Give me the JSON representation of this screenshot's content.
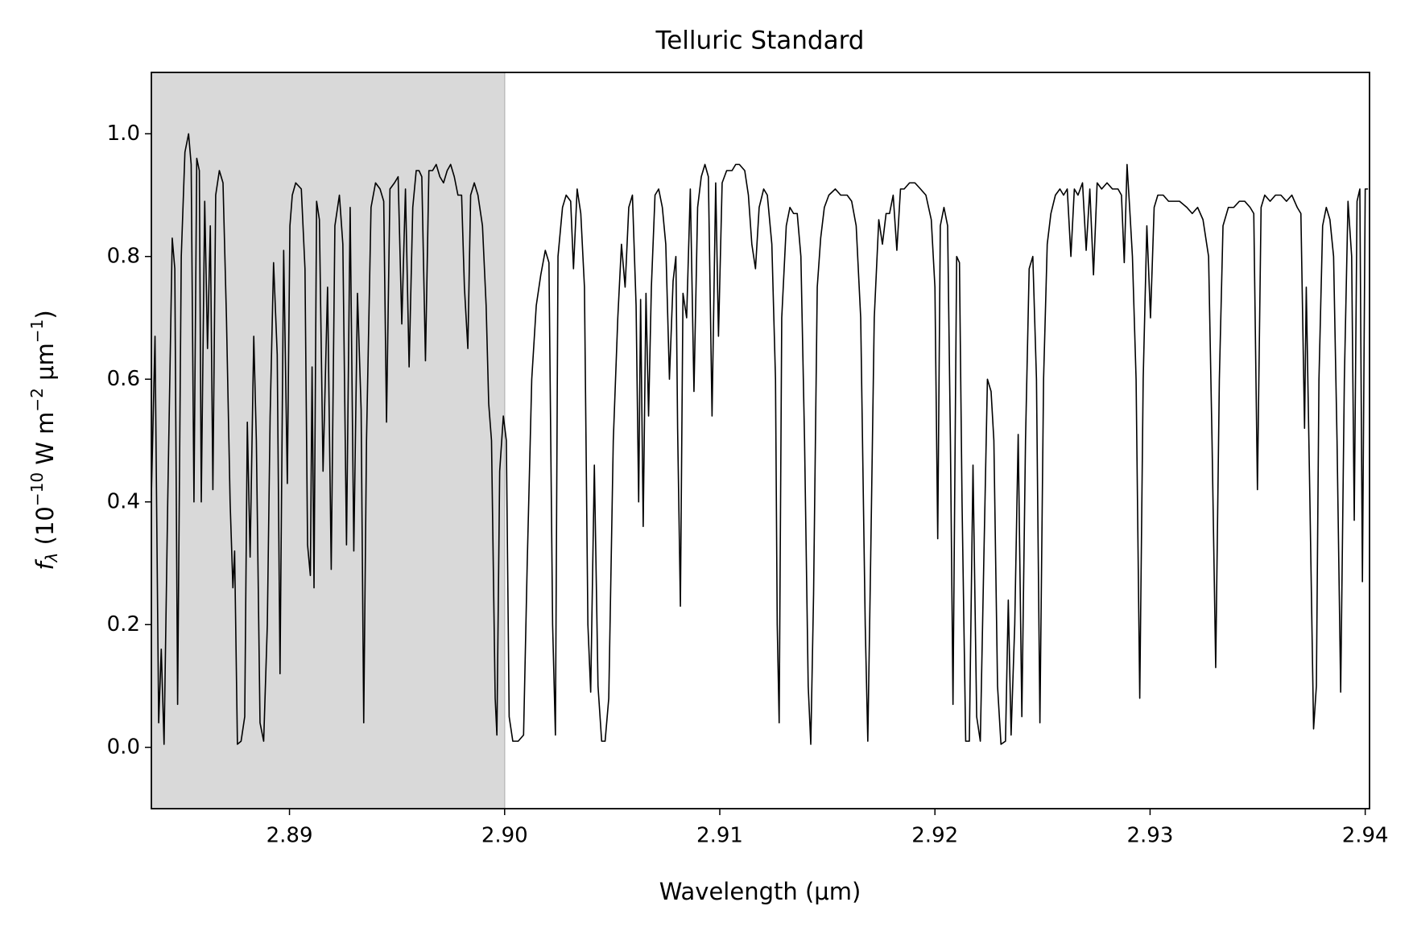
{
  "chart_data": {
    "type": "line",
    "title": "Telluric Standard",
    "xlabel": "Wavelength (μm)",
    "ylabel": {
      "symbol": "f",
      "subscript": "λ",
      "open": " (10",
      "exp1": "−10",
      "unit1": " W m",
      "exp2": "−2",
      "unit2": " μm",
      "exp3": "−1",
      "close": ")"
    },
    "xlim": [
      2.88358,
      2.9402
    ],
    "ylim": [
      -0.1,
      1.1
    ],
    "xticks": [
      2.89,
      {
        "value": 2.9,
        "label": "2.90"
      },
      2.91,
      2.92,
      2.93,
      2.94
    ],
    "yticks": [
      {
        "value": 0,
        "label": "0.0"
      },
      0.2,
      0.4,
      0.6,
      0.8,
      {
        "value": 1,
        "label": "1.0"
      }
    ],
    "shade": {
      "x": [
        2.88358,
        2.9
      ],
      "color": "#d9d9d9"
    },
    "color": "#000000",
    "x": [
      2.88358,
      2.88375,
      2.88392,
      2.88404,
      2.88417,
      2.88434,
      2.88455,
      2.88467,
      2.8848,
      2.88497,
      2.88514,
      2.88531,
      2.88543,
      2.88556,
      2.88569,
      2.88581,
      2.8859,
      2.88606,
      2.88619,
      2.88632,
      2.88644,
      2.88657,
      2.88674,
      2.88691,
      2.88707,
      2.88724,
      2.88737,
      2.88745,
      2.88758,
      2.88775,
      2.88792,
      2.88804,
      2.88817,
      2.88834,
      2.88846,
      2.88863,
      2.8888,
      2.88897,
      2.8891,
      2.88926,
      2.88943,
      2.88956,
      2.88973,
      2.8899,
      2.89002,
      2.89013,
      2.89029,
      2.89055,
      2.89072,
      2.89084,
      2.89097,
      2.89105,
      2.89114,
      2.89126,
      2.89139,
      2.89156,
      2.89177,
      2.89194,
      2.89211,
      2.89232,
      2.89248,
      2.89265,
      2.89282,
      2.89299,
      2.89316,
      2.89333,
      2.89345,
      2.89358,
      2.89379,
      2.894,
      2.89421,
      2.89438,
      2.89451,
      2.89467,
      2.89488,
      2.89505,
      2.89522,
      2.89539,
      2.89556,
      2.89573,
      2.89589,
      2.89602,
      2.89615,
      2.89632,
      2.89648,
      2.89665,
      2.89682,
      2.89699,
      2.89716,
      2.89733,
      2.89749,
      2.89766,
      2.89783,
      2.898,
      2.89813,
      2.89829,
      2.89842,
      2.89859,
      2.89876,
      2.89897,
      2.89914,
      2.89926,
      2.89939,
      2.89956,
      2.89964,
      2.89977,
      2.89994,
      2.90008,
      2.90021,
      2.90038,
      2.90063,
      2.90088,
      2.90105,
      2.90126,
      2.90147,
      2.90168,
      2.90189,
      2.90206,
      2.90223,
      2.90236,
      2.90248,
      2.90269,
      2.90286,
      2.90307,
      2.9032,
      2.90337,
      2.90354,
      2.90371,
      2.90387,
      2.904,
      2.90417,
      2.90434,
      2.90451,
      2.90467,
      2.90484,
      2.90505,
      2.90526,
      2.90543,
      2.9056,
      2.90577,
      2.90594,
      2.90611,
      2.90623,
      2.90632,
      2.90644,
      2.90657,
      2.90669,
      2.90682,
      2.90699,
      2.90716,
      2.90733,
      2.90749,
      2.90766,
      2.90783,
      2.90796,
      2.90804,
      2.90817,
      2.90829,
      2.90846,
      2.90863,
      2.9088,
      2.90897,
      2.90914,
      2.90931,
      2.90947,
      2.90964,
      2.90981,
      2.90994,
      2.91011,
      2.91032,
      2.91057,
      2.91074,
      2.91091,
      2.91116,
      2.91133,
      2.91149,
      2.91166,
      2.91183,
      2.91204,
      2.91221,
      2.91242,
      2.91259,
      2.91267,
      2.91276,
      2.91288,
      2.91309,
      2.91326,
      2.91343,
      2.9136,
      2.91377,
      2.91394,
      2.91411,
      2.91423,
      2.91436,
      2.91453,
      2.91469,
      2.91486,
      2.91507,
      2.91537,
      2.91562,
      2.91592,
      2.91613,
      2.91634,
      2.91655,
      2.91676,
      2.91688,
      2.91701,
      2.91718,
      2.91739,
      2.91756,
      2.91773,
      2.91789,
      2.91806,
      2.91823,
      2.9184,
      2.91857,
      2.91882,
      2.91907,
      2.91933,
      2.91958,
      2.91983,
      2.92,
      2.92013,
      2.92025,
      2.92042,
      2.92059,
      2.92072,
      2.92084,
      2.92101,
      2.92114,
      2.92126,
      2.92143,
      2.9216,
      2.92177,
      2.92194,
      2.92211,
      2.92227,
      2.92244,
      2.92261,
      2.92274,
      2.92291,
      2.92307,
      2.92328,
      2.92341,
      2.92354,
      2.92371,
      2.92387,
      2.92404,
      2.92421,
      2.92438,
      2.92455,
      2.92472,
      2.92488,
      2.92505,
      2.92522,
      2.92539,
      2.9256,
      2.92581,
      2.92598,
      2.92615,
      2.92632,
      2.92648,
      2.92665,
      2.92686,
      2.92703,
      2.9272,
      2.92737,
      2.92754,
      2.92775,
      2.928,
      2.92825,
      2.92851,
      2.92867,
      2.9288,
      2.92893,
      2.92905,
      2.92918,
      2.92935,
      2.92952,
      2.92968,
      2.92985,
      2.93002,
      2.93019,
      2.93036,
      2.93061,
      2.93086,
      2.93112,
      2.93137,
      2.93171,
      2.93196,
      2.93221,
      2.93246,
      2.93272,
      2.93288,
      2.93305,
      2.93322,
      2.93339,
      2.93364,
      2.93389,
      2.93415,
      2.9344,
      2.93465,
      2.93482,
      2.93499,
      2.93516,
      2.93533,
      2.93558,
      2.93583,
      2.93608,
      2.93634,
      2.93659,
      2.93684,
      2.93701,
      2.93718,
      2.93726,
      2.93743,
      2.9376,
      2.93773,
      2.93785,
      2.93802,
      2.93819,
      2.93836,
      2.93853,
      2.93869,
      2.93886,
      2.93903,
      2.9392,
      2.93937,
      2.93949,
      2.93962,
      2.93975,
      2.93987,
      2.94,
      2.94013
    ],
    "values": [
      0.41,
      0.67,
      0.04,
      0.16,
      0.005,
      0.4,
      0.83,
      0.78,
      0.07,
      0.8,
      0.97,
      1.0,
      0.95,
      0.4,
      0.96,
      0.94,
      0.4,
      0.89,
      0.65,
      0.85,
      0.42,
      0.9,
      0.94,
      0.92,
      0.7,
      0.4,
      0.26,
      0.32,
      0.005,
      0.01,
      0.05,
      0.53,
      0.31,
      0.67,
      0.5,
      0.04,
      0.01,
      0.2,
      0.54,
      0.79,
      0.64,
      0.12,
      0.81,
      0.43,
      0.85,
      0.9,
      0.92,
      0.91,
      0.78,
      0.33,
      0.28,
      0.62,
      0.26,
      0.89,
      0.86,
      0.45,
      0.75,
      0.29,
      0.85,
      0.9,
      0.82,
      0.33,
      0.88,
      0.32,
      0.74,
      0.55,
      0.04,
      0.5,
      0.88,
      0.92,
      0.91,
      0.89,
      0.53,
      0.91,
      0.92,
      0.93,
      0.69,
      0.91,
      0.62,
      0.88,
      0.94,
      0.94,
      0.93,
      0.63,
      0.94,
      0.94,
      0.95,
      0.93,
      0.92,
      0.94,
      0.95,
      0.93,
      0.9,
      0.9,
      0.75,
      0.65,
      0.9,
      0.92,
      0.9,
      0.85,
      0.72,
      0.56,
      0.5,
      0.08,
      0.02,
      0.45,
      0.54,
      0.5,
      0.05,
      0.01,
      0.01,
      0.02,
      0.3,
      0.6,
      0.72,
      0.77,
      0.81,
      0.79,
      0.2,
      0.02,
      0.8,
      0.88,
      0.9,
      0.89,
      0.78,
      0.91,
      0.87,
      0.75,
      0.2,
      0.09,
      0.46,
      0.1,
      0.01,
      0.01,
      0.08,
      0.5,
      0.7,
      0.82,
      0.75,
      0.88,
      0.9,
      0.72,
      0.4,
      0.73,
      0.36,
      0.74,
      0.54,
      0.75,
      0.9,
      0.91,
      0.88,
      0.82,
      0.6,
      0.76,
      0.8,
      0.52,
      0.23,
      0.74,
      0.7,
      0.91,
      0.58,
      0.88,
      0.93,
      0.95,
      0.93,
      0.54,
      0.92,
      0.67,
      0.92,
      0.94,
      0.94,
      0.95,
      0.95,
      0.94,
      0.9,
      0.82,
      0.78,
      0.88,
      0.91,
      0.9,
      0.82,
      0.6,
      0.2,
      0.04,
      0.7,
      0.85,
      0.88,
      0.87,
      0.87,
      0.8,
      0.5,
      0.1,
      0.005,
      0.25,
      0.75,
      0.83,
      0.88,
      0.9,
      0.91,
      0.9,
      0.9,
      0.89,
      0.85,
      0.7,
      0.2,
      0.01,
      0.3,
      0.7,
      0.86,
      0.82,
      0.87,
      0.87,
      0.9,
      0.81,
      0.91,
      0.91,
      0.92,
      0.92,
      0.91,
      0.9,
      0.86,
      0.75,
      0.34,
      0.85,
      0.88,
      0.85,
      0.5,
      0.07,
      0.8,
      0.79,
      0.4,
      0.01,
      0.01,
      0.46,
      0.05,
      0.01,
      0.3,
      0.6,
      0.58,
      0.5,
      0.1,
      0.005,
      0.01,
      0.24,
      0.02,
      0.2,
      0.51,
      0.05,
      0.5,
      0.78,
      0.8,
      0.6,
      0.04,
      0.6,
      0.82,
      0.87,
      0.9,
      0.91,
      0.9,
      0.91,
      0.8,
      0.91,
      0.9,
      0.92,
      0.81,
      0.91,
      0.77,
      0.92,
      0.91,
      0.92,
      0.91,
      0.91,
      0.9,
      0.79,
      0.95,
      0.88,
      0.8,
      0.6,
      0.08,
      0.6,
      0.85,
      0.7,
      0.88,
      0.9,
      0.9,
      0.89,
      0.89,
      0.89,
      0.88,
      0.87,
      0.88,
      0.86,
      0.8,
      0.5,
      0.13,
      0.6,
      0.85,
      0.88,
      0.88,
      0.89,
      0.89,
      0.88,
      0.87,
      0.42,
      0.88,
      0.9,
      0.89,
      0.9,
      0.9,
      0.89,
      0.9,
      0.88,
      0.87,
      0.52,
      0.75,
      0.4,
      0.03,
      0.1,
      0.6,
      0.85,
      0.88,
      0.86,
      0.8,
      0.5,
      0.09,
      0.6,
      0.89,
      0.8,
      0.37,
      0.89,
      0.91,
      0.27,
      0.91,
      0.91
    ]
  }
}
